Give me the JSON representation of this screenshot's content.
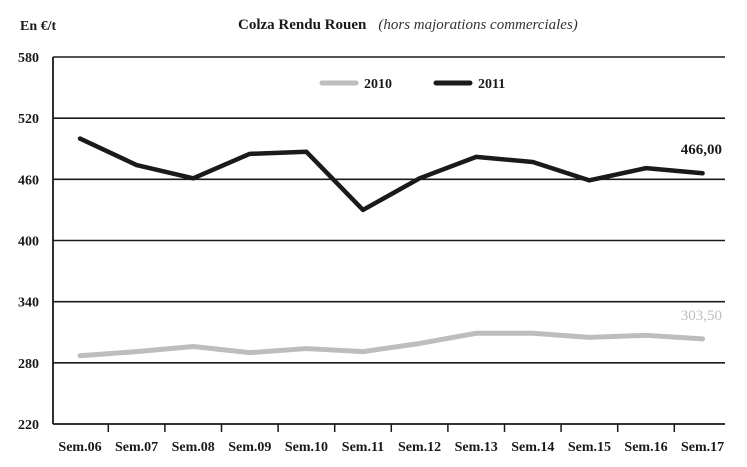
{
  "chart_data": {
    "type": "line",
    "title": "Colza Rendu Rouen",
    "subtitle": "(hors majorations commerciales)",
    "ylabel": "En €/t",
    "xlabel": "",
    "categories": [
      "Sem.06",
      "Sem.07",
      "Sem.08",
      "Sem.09",
      "Sem.10",
      "Sem.11",
      "Sem.12",
      "Sem.13",
      "Sem.14",
      "Sem.15",
      "Sem.16",
      "Sem.17"
    ],
    "ylim": [
      220,
      580
    ],
    "yticks": [
      220,
      280,
      340,
      400,
      460,
      520,
      580
    ],
    "grid": "horizontal",
    "legend_position": "top-center",
    "series": [
      {
        "name": "2010",
        "color": "#bdbdbd",
        "values": [
          287,
          291,
          296,
          290,
          294,
          291,
          299,
          309,
          309,
          305,
          307,
          303.5
        ],
        "end_label": "303,50"
      },
      {
        "name": "2011",
        "color": "#1a1a1a",
        "values": [
          500,
          474,
          461,
          485,
          487,
          430,
          461,
          482,
          477,
          459,
          471,
          466
        ],
        "end_label": "466,00"
      }
    ]
  }
}
